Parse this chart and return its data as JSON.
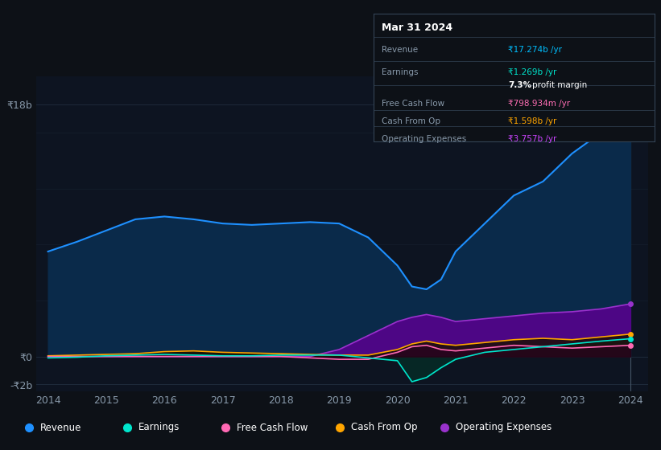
{
  "bg_color": "#0d1117",
  "plot_bg_color": "#0d1421",
  "grid_color": "#1e2a3a",
  "title_box": {
    "date": "Mar 31 2024",
    "rows": [
      {
        "label": "Revenue",
        "value": "₹17.274b /yr",
        "value_color": "#00bfff"
      },
      {
        "label": "Earnings",
        "value": "₹1.269b /yr",
        "value_color": "#00e5cc"
      },
      {
        "label": "",
        "value": "7.3% profit margin",
        "value_color": "#ffffff"
      },
      {
        "label": "Free Cash Flow",
        "value": "₹798.934m /yr",
        "value_color": "#ff6eb4"
      },
      {
        "label": "Cash From Op",
        "value": "₹1.598b /yr",
        "value_color": "#ffa500"
      },
      {
        "label": "Operating Expenses",
        "value": "₹3.757b /yr",
        "value_color": "#cc44ff"
      }
    ]
  },
  "years": [
    2014,
    2014.5,
    2015,
    2015.5,
    2016,
    2016.5,
    2017,
    2017.5,
    2018,
    2018.5,
    2019,
    2019.5,
    2020,
    2020.25,
    2020.5,
    2020.75,
    2021,
    2021.5,
    2022,
    2022.5,
    2023,
    2023.5,
    2024
  ],
  "revenue": [
    7.5,
    8.2,
    9.0,
    9.8,
    10.0,
    9.8,
    9.5,
    9.4,
    9.5,
    9.6,
    9.5,
    8.5,
    6.5,
    5.0,
    4.8,
    5.5,
    7.5,
    9.5,
    11.5,
    12.5,
    14.5,
    16.0,
    17.274
  ],
  "earnings": [
    -0.1,
    -0.05,
    0.05,
    0.1,
    0.15,
    0.1,
    0.05,
    0.05,
    0.1,
    0.1,
    0.1,
    -0.1,
    -0.3,
    -1.8,
    -1.5,
    -0.8,
    -0.2,
    0.3,
    0.5,
    0.7,
    0.9,
    1.1,
    1.269
  ],
  "free_cash_flow": [
    0.0,
    0.0,
    0.0,
    0.0,
    0.0,
    0.0,
    0.0,
    0.0,
    0.0,
    -0.1,
    -0.2,
    -0.2,
    0.3,
    0.7,
    0.8,
    0.5,
    0.4,
    0.6,
    0.8,
    0.7,
    0.6,
    0.7,
    0.799
  ],
  "cash_from_op": [
    0.05,
    0.1,
    0.15,
    0.2,
    0.35,
    0.4,
    0.3,
    0.25,
    0.2,
    0.15,
    0.1,
    0.1,
    0.5,
    0.9,
    1.1,
    0.9,
    0.8,
    1.0,
    1.2,
    1.3,
    1.2,
    1.4,
    1.598
  ],
  "op_expenses": [
    0.0,
    0.0,
    0.0,
    0.0,
    0.0,
    0.0,
    0.0,
    0.0,
    0.0,
    0.0,
    0.5,
    1.5,
    2.5,
    2.8,
    3.0,
    2.8,
    2.5,
    2.7,
    2.9,
    3.1,
    3.2,
    3.4,
    3.757
  ],
  "ylim": [
    -2.5,
    20
  ],
  "yticks": [
    -2,
    0,
    18
  ],
  "ytick_labels": [
    "-₹2b",
    "₹0",
    "₹18b"
  ],
  "xlim": [
    2013.8,
    2024.3
  ],
  "xticks": [
    2014,
    2015,
    2016,
    2017,
    2018,
    2019,
    2020,
    2021,
    2022,
    2023,
    2024
  ],
  "revenue_color": "#1e90ff",
  "earnings_color": "#00e5cc",
  "fcf_color": "#ff69b4",
  "cashop_color": "#ffa500",
  "opex_color": "#9932cc",
  "legend_items": [
    {
      "label": "Revenue",
      "color": "#1e90ff"
    },
    {
      "label": "Earnings",
      "color": "#00e5cc"
    },
    {
      "label": "Free Cash Flow",
      "color": "#ff69b4"
    },
    {
      "label": "Cash From Op",
      "color": "#ffa500"
    },
    {
      "label": "Operating Expenses",
      "color": "#9932cc"
    }
  ]
}
